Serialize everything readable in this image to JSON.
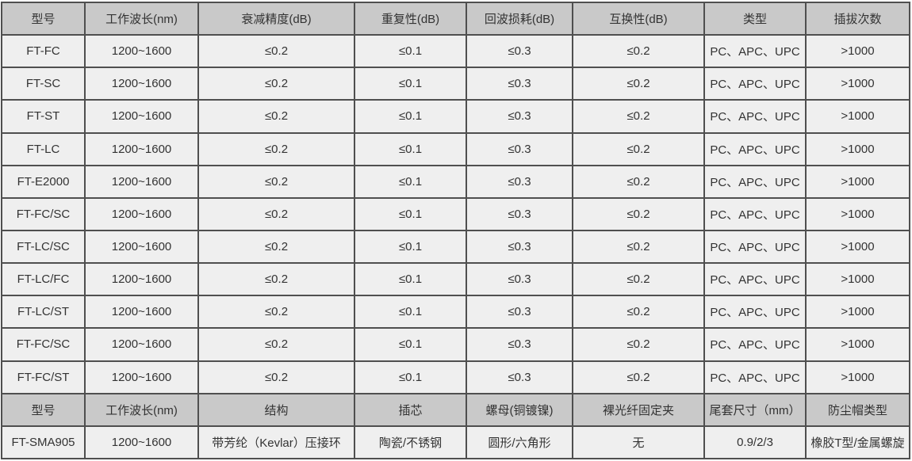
{
  "colors": {
    "header_bg": "#c9c9c9",
    "cell_bg": "#efefef",
    "border": "#4f4f4f",
    "text": "#333333",
    "page_bg": "#ffffff"
  },
  "section1": {
    "headers": [
      "型号",
      "工作波长(nm)",
      "衰减精度(dB)",
      "重复性(dB)",
      "回波损耗(dB)",
      "互换性(dB)",
      "类型",
      "插拔次数"
    ],
    "rows": [
      [
        "FT-FC",
        "1200~1600",
        "≤0.2",
        "≤0.1",
        "≤0.3",
        "≤0.2",
        "PC、APC、UPC",
        ">1000"
      ],
      [
        "FT-SC",
        "1200~1600",
        "≤0.2",
        "≤0.1",
        "≤0.3",
        "≤0.2",
        "PC、APC、UPC",
        ">1000"
      ],
      [
        "FT-ST",
        "1200~1600",
        "≤0.2",
        "≤0.1",
        "≤0.3",
        "≤0.2",
        "PC、APC、UPC",
        ">1000"
      ],
      [
        "FT-LC",
        "1200~1600",
        "≤0.2",
        "≤0.1",
        "≤0.3",
        "≤0.2",
        "PC、APC、UPC",
        ">1000"
      ],
      [
        "FT-E2000",
        "1200~1600",
        "≤0.2",
        "≤0.1",
        "≤0.3",
        "≤0.2",
        "PC、APC、UPC",
        ">1000"
      ],
      [
        "FT-FC/SC",
        "1200~1600",
        "≤0.2",
        "≤0.1",
        "≤0.3",
        "≤0.2",
        "PC、APC、UPC",
        ">1000"
      ],
      [
        "FT-LC/SC",
        "1200~1600",
        "≤0.2",
        "≤0.1",
        "≤0.3",
        "≤0.2",
        "PC、APC、UPC",
        ">1000"
      ],
      [
        "FT-LC/FC",
        "1200~1600",
        "≤0.2",
        "≤0.1",
        "≤0.3",
        "≤0.2",
        "PC、APC、UPC",
        ">1000"
      ],
      [
        "FT-LC/ST",
        "1200~1600",
        "≤0.2",
        "≤0.1",
        "≤0.3",
        "≤0.2",
        "PC、APC、UPC",
        ">1000"
      ],
      [
        "FT-FC/SC",
        "1200~1600",
        "≤0.2",
        "≤0.1",
        "≤0.3",
        "≤0.2",
        "PC、APC、UPC",
        ">1000"
      ],
      [
        "FT-FC/ST",
        "1200~1600",
        "≤0.2",
        "≤0.1",
        "≤0.3",
        "≤0.2",
        "PC、APC、UPC",
        ">1000"
      ]
    ]
  },
  "section2": {
    "headers": [
      "型号",
      "工作波长(nm)",
      "结构",
      "插芯",
      "螺母(铜镀镍)",
      "裸光纤固定夹",
      "尾套尺寸（mm）",
      "防尘帽类型"
    ],
    "rows": [
      [
        "FT-SMA905",
        "1200~1600",
        "带芳纶（Kevlar）压接环",
        "陶瓷/不锈钢",
        "圆形/六角形",
        "无",
        "0.9/2/3",
        "橡胶T型/金属螺旋"
      ]
    ]
  },
  "chart_data": {
    "type": "table",
    "title": "",
    "sections": [
      {
        "columns": [
          "型号",
          "工作波长(nm)",
          "衰减精度(dB)",
          "重复性(dB)",
          "回波损耗(dB)",
          "互换性(dB)",
          "类型",
          "插拔次数"
        ],
        "rows": [
          [
            "FT-FC",
            "1200~1600",
            "≤0.2",
            "≤0.1",
            "≤0.3",
            "≤0.2",
            "PC、APC、UPC",
            ">1000"
          ],
          [
            "FT-SC",
            "1200~1600",
            "≤0.2",
            "≤0.1",
            "≤0.3",
            "≤0.2",
            "PC、APC、UPC",
            ">1000"
          ],
          [
            "FT-ST",
            "1200~1600",
            "≤0.2",
            "≤0.1",
            "≤0.3",
            "≤0.2",
            "PC、APC、UPC",
            ">1000"
          ],
          [
            "FT-LC",
            "1200~1600",
            "≤0.2",
            "≤0.1",
            "≤0.3",
            "≤0.2",
            "PC、APC、UPC",
            ">1000"
          ],
          [
            "FT-E2000",
            "1200~1600",
            "≤0.2",
            "≤0.1",
            "≤0.3",
            "≤0.2",
            "PC、APC、UPC",
            ">1000"
          ],
          [
            "FT-FC/SC",
            "1200~1600",
            "≤0.2",
            "≤0.1",
            "≤0.3",
            "≤0.2",
            "PC、APC、UPC",
            ">1000"
          ],
          [
            "FT-LC/SC",
            "1200~1600",
            "≤0.2",
            "≤0.1",
            "≤0.3",
            "≤0.2",
            "PC、APC、UPC",
            ">1000"
          ],
          [
            "FT-LC/FC",
            "1200~1600",
            "≤0.2",
            "≤0.1",
            "≤0.3",
            "≤0.2",
            "PC、APC、UPC",
            ">1000"
          ],
          [
            "FT-LC/ST",
            "1200~1600",
            "≤0.2",
            "≤0.1",
            "≤0.3",
            "≤0.2",
            "PC、APC、UPC",
            ">1000"
          ],
          [
            "FT-FC/SC",
            "1200~1600",
            "≤0.2",
            "≤0.1",
            "≤0.3",
            "≤0.2",
            "PC、APC、UPC",
            ">1000"
          ],
          [
            "FT-FC/ST",
            "1200~1600",
            "≤0.2",
            "≤0.1",
            "≤0.3",
            "≤0.2",
            "PC、APC、UPC",
            ">1000"
          ]
        ]
      },
      {
        "columns": [
          "型号",
          "工作波长(nm)",
          "结构",
          "插芯",
          "螺母(铜镀镍)",
          "裸光纤固定夹",
          "尾套尺寸（mm）",
          "防尘帽类型"
        ],
        "rows": [
          [
            "FT-SMA905",
            "1200~1600",
            "带芳纶（Kevlar）压接环",
            "陶瓷/不锈钢",
            "圆形/六角形",
            "无",
            "0.9/2/3",
            "橡胶T型/金属螺旋"
          ]
        ]
      }
    ]
  }
}
